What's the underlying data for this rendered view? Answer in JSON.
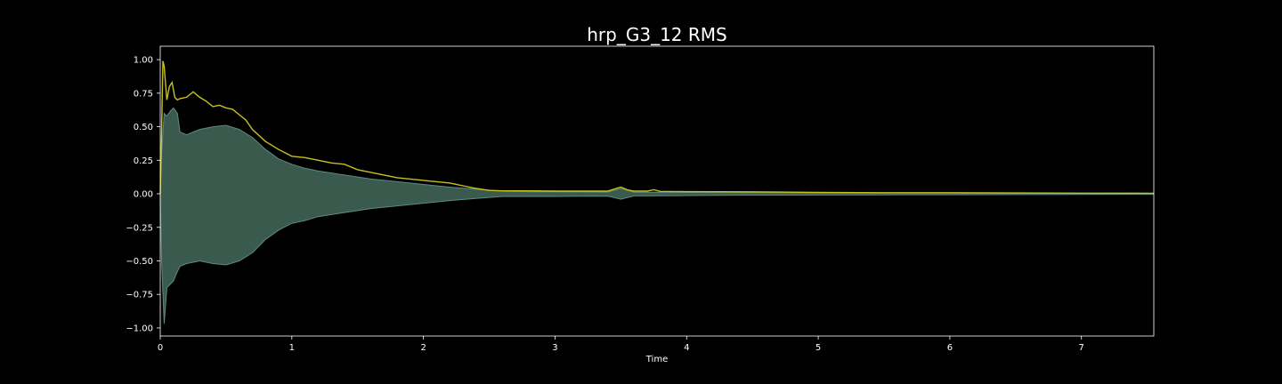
{
  "chart_data": {
    "type": "area",
    "title": "hrp_G3_12 RMS",
    "xlabel": "Time",
    "ylabel": "",
    "xlim": [
      0,
      7.55
    ],
    "ylim": [
      -1.06,
      1.1
    ],
    "x_ticks": [
      0,
      1,
      2,
      3,
      4,
      5,
      6,
      7
    ],
    "x_tick_labels": [
      "0",
      "1",
      "2",
      "3",
      "4",
      "5",
      "6",
      "7"
    ],
    "y_ticks": [
      1.0,
      0.75,
      0.5,
      0.25,
      0.0,
      -0.25,
      -0.5,
      -0.75,
      -1.0
    ],
    "y_tick_labels": [
      "1.00",
      "0.75",
      "0.50",
      "0.25",
      "0.00",
      "−0.25",
      "−0.50",
      "−0.75",
      "−1.00"
    ],
    "grid": false,
    "colors": {
      "background": "#000000",
      "axes": "#ffffff",
      "rms": "#c8c01c",
      "waveform_fill": "#3a5a4e",
      "waveform_edge": "#5e8a80"
    },
    "series": [
      {
        "kind": "rms",
        "x": [
          0,
          0.01,
          0.02,
          0.03,
          0.05,
          0.07,
          0.09,
          0.11,
          0.13,
          0.15,
          0.2,
          0.25,
          0.3,
          0.35,
          0.4,
          0.45,
          0.5,
          0.55,
          0.6,
          0.65,
          0.7,
          0.8,
          0.9,
          1.0,
          1.1,
          1.2,
          1.3,
          1.4,
          1.5,
          1.6,
          1.7,
          1.8,
          1.9,
          2.0,
          2.1,
          2.2,
          2.3,
          2.4,
          2.5,
          2.6,
          2.8,
          3.0,
          3.2,
          3.4,
          3.45,
          3.5,
          3.55,
          3.6,
          3.7,
          3.75,
          3.8,
          4.0,
          4.5,
          5.0,
          5.5,
          6.0,
          6.5,
          7.0,
          7.55
        ],
        "y": [
          0.0,
          0.45,
          0.99,
          0.95,
          0.7,
          0.8,
          0.83,
          0.72,
          0.7,
          0.71,
          0.72,
          0.76,
          0.72,
          0.69,
          0.65,
          0.66,
          0.64,
          0.63,
          0.59,
          0.55,
          0.48,
          0.39,
          0.33,
          0.28,
          0.27,
          0.25,
          0.23,
          0.22,
          0.18,
          0.16,
          0.14,
          0.12,
          0.11,
          0.1,
          0.09,
          0.08,
          0.06,
          0.04,
          0.025,
          0.022,
          0.022,
          0.02,
          0.02,
          0.02,
          0.035,
          0.05,
          0.03,
          0.02,
          0.02,
          0.03,
          0.018,
          0.016,
          0.015,
          0.01,
          0.008,
          0.008,
          0.006,
          0.005,
          0.004
        ]
      },
      {
        "kind": "waveform_envelope",
        "x": [
          0,
          0.01,
          0.03,
          0.05,
          0.08,
          0.1,
          0.13,
          0.15,
          0.2,
          0.3,
          0.4,
          0.5,
          0.6,
          0.7,
          0.8,
          0.9,
          1.0,
          1.1,
          1.2,
          1.4,
          1.6,
          1.8,
          2.0,
          2.2,
          2.4,
          2.6,
          2.8,
          3.0,
          3.2,
          3.4,
          3.5,
          3.6,
          3.8,
          4.0,
          4.5,
          5.0,
          5.5,
          6.0,
          6.5,
          7.0,
          7.55
        ],
        "upper": [
          0.0,
          0.3,
          0.6,
          0.58,
          0.62,
          0.64,
          0.6,
          0.46,
          0.44,
          0.48,
          0.5,
          0.51,
          0.48,
          0.42,
          0.33,
          0.26,
          0.22,
          0.19,
          0.17,
          0.14,
          0.11,
          0.09,
          0.07,
          0.05,
          0.035,
          0.02,
          0.015,
          0.015,
          0.014,
          0.013,
          0.04,
          0.012,
          0.012,
          0.01,
          0.008,
          0.007,
          0.006,
          0.005,
          0.004,
          0.003,
          0.003
        ],
        "lower": [
          0.0,
          -0.5,
          -0.97,
          -0.7,
          -0.67,
          -0.65,
          -0.58,
          -0.54,
          -0.52,
          -0.5,
          -0.52,
          -0.53,
          -0.5,
          -0.44,
          -0.34,
          -0.27,
          -0.22,
          -0.2,
          -0.17,
          -0.14,
          -0.11,
          -0.09,
          -0.07,
          -0.05,
          -0.035,
          -0.02,
          -0.02,
          -0.02,
          -0.018,
          -0.017,
          -0.04,
          -0.016,
          -0.015,
          -0.013,
          -0.01,
          -0.009,
          -0.008,
          -0.007,
          -0.006,
          -0.005,
          -0.004
        ]
      }
    ]
  }
}
